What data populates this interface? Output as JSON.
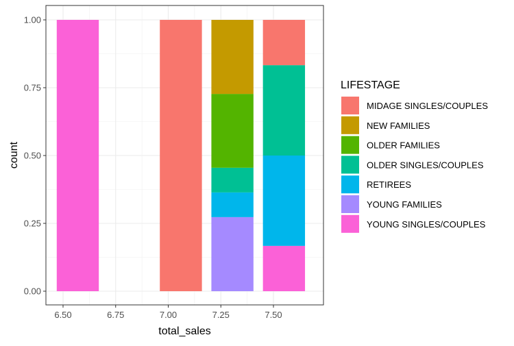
{
  "chart_data": {
    "type": "bar",
    "xlabel": "total_sales",
    "ylabel": "count",
    "x_ticks": [
      "6.50",
      "6.75",
      "7.00",
      "7.25",
      "7.50"
    ],
    "y_ticks": [
      "0.00",
      "0.25",
      "0.50",
      "0.75",
      "1.00"
    ],
    "xlim": [
      6.4,
      7.7
    ],
    "ylim": [
      0,
      1
    ],
    "grid": true,
    "bin_width": 0.2,
    "legend": {
      "title": "LIFESTAGE",
      "placement": "right",
      "entries": [
        {
          "name": "MIDAGE SINGLES/COUPLES",
          "color": "#F8766D"
        },
        {
          "name": "NEW FAMILIES",
          "color": "#C49A00"
        },
        {
          "name": "OLDER FAMILIES",
          "color": "#53B400"
        },
        {
          "name": "OLDER SINGLES/COUPLES",
          "color": "#00C094"
        },
        {
          "name": "RETIREES",
          "color": "#00B6EB"
        },
        {
          "name": "YOUNG FAMILIES",
          "color": "#A58AFF"
        },
        {
          "name": "YOUNG SINGLES/COUPLES",
          "color": "#FB61D7"
        }
      ]
    },
    "bins": [
      {
        "x": 6.57,
        "segments": [
          {
            "group": "YOUNG SINGLES/COUPLES",
            "from": 0,
            "to": 1.0
          }
        ]
      },
      {
        "x": 7.06,
        "segments": [
          {
            "group": "MIDAGE SINGLES/COUPLES",
            "from": 0,
            "to": 1.0
          }
        ]
      },
      {
        "x": 7.305,
        "segments": [
          {
            "group": "YOUNG FAMILIES",
            "from": 0,
            "to": 0.273
          },
          {
            "group": "RETIREES",
            "from": 0.273,
            "to": 0.364
          },
          {
            "group": "OLDER SINGLES/COUPLES",
            "from": 0.364,
            "to": 0.455
          },
          {
            "group": "OLDER FAMILIES",
            "from": 0.455,
            "to": 0.727
          },
          {
            "group": "NEW FAMILIES",
            "from": 0.727,
            "to": 1.0
          }
        ]
      },
      {
        "x": 7.55,
        "segments": [
          {
            "group": "YOUNG SINGLES/COUPLES",
            "from": 0,
            "to": 0.167
          },
          {
            "group": "RETIREES",
            "from": 0.167,
            "to": 0.5
          },
          {
            "group": "OLDER SINGLES/COUPLES",
            "from": 0.5,
            "to": 0.833
          },
          {
            "group": "MIDAGE SINGLES/COUPLES",
            "from": 0.833,
            "to": 1.0
          }
        ]
      }
    ]
  }
}
